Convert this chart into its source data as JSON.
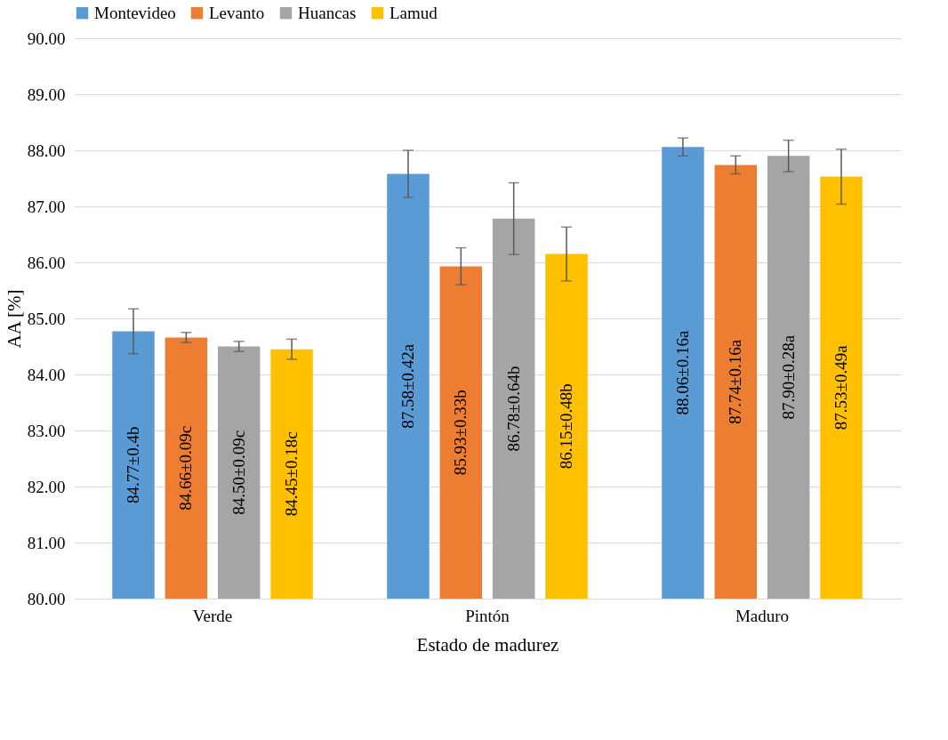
{
  "chart_data": {
    "type": "bar",
    "xlabel": "Estado de madurez",
    "ylabel": "AA [%]",
    "categories": [
      "Verde",
      "Pintón",
      "Maduro"
    ],
    "series": [
      {
        "name": "Montevideo",
        "color": "#5b9bd5",
        "values": [
          84.77,
          87.58,
          88.06
        ],
        "errors": [
          0.4,
          0.42,
          0.16
        ],
        "value_labels": [
          "84.77±0.4b",
          "87.58±0.42a",
          "88.06±0.16a"
        ]
      },
      {
        "name": "Levanto",
        "color": "#ed7d31",
        "values": [
          84.66,
          85.93,
          87.74
        ],
        "errors": [
          0.09,
          0.33,
          0.16
        ],
        "value_labels": [
          "84.66±0.09c",
          "85.93±0.33b",
          "87.74±0.16a"
        ]
      },
      {
        "name": "Huancas",
        "color": "#a5a5a5",
        "values": [
          84.5,
          86.78,
          87.9
        ],
        "errors": [
          0.09,
          0.64,
          0.28
        ],
        "value_labels": [
          "84.50±0.09c",
          "86.78±0.64b",
          "87.90±0.28a"
        ]
      },
      {
        "name": "Lamud",
        "color": "#ffc000",
        "values": [
          84.45,
          86.15,
          87.53
        ],
        "errors": [
          0.18,
          0.48,
          0.49
        ],
        "value_labels": [
          "84.45±0.18c",
          "86.15±0.48b",
          "87.53±0.49a"
        ]
      }
    ],
    "ylim": [
      80,
      90
    ],
    "yticks": [
      {
        "value": 80,
        "label": "80.00"
      },
      {
        "value": 81,
        "label": "81.00"
      },
      {
        "value": 82,
        "label": "82.00"
      },
      {
        "value": 83,
        "label": "83.00"
      },
      {
        "value": 84,
        "label": "84.00"
      },
      {
        "value": 85,
        "label": "85.00"
      },
      {
        "value": 86,
        "label": "86.00"
      },
      {
        "value": 87,
        "label": "87.00"
      },
      {
        "value": 88,
        "label": "88.00"
      },
      {
        "value": 89,
        "label": "89.00"
      },
      {
        "value": 90,
        "label": "90.00"
      }
    ],
    "grid": "y",
    "legend": "top"
  }
}
